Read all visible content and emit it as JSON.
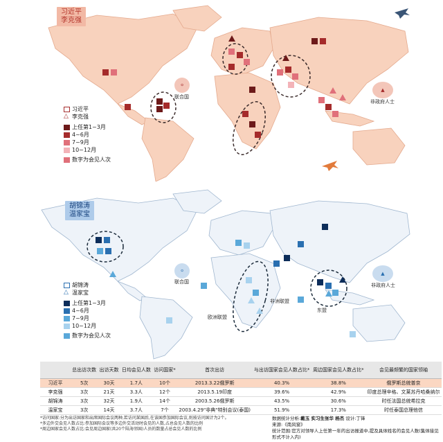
{
  "map1": {
    "tag_line1": "习近平",
    "tag_line2": "李克强",
    "un_label": "联合国",
    "nonstate_label": "非政府人士",
    "legend": {
      "leader1": "习近平",
      "leader2": "李克强",
      "q1": "上任第1~3月",
      "q2": "4~6月",
      "q3": "7~9月",
      "q4": "10~12月",
      "note": "数字为会见人次"
    }
  },
  "map2": {
    "tag_line1": "胡锦涛",
    "tag_line2": "温家宝",
    "un_label": "联合国",
    "nonstate_label": "非政府人士",
    "eu_label": "欧洲联盟",
    "africa_label": "非洲联盟",
    "asean_label": "东盟",
    "legend": {
      "leader1": "胡锦涛",
      "leader2": "温家宝",
      "q1": "上任第1~3月",
      "q2": "4~6月",
      "q3": "7~9月",
      "q4": "10~12月",
      "note": "数字为会见人次"
    }
  },
  "table": {
    "headers": [
      "",
      "总出访次数",
      "出访天数",
      "日均会见人数",
      "访问国家*",
      "首次出访",
      "与出访国家会见人数占比*",
      "周边国家会见人数占比*",
      "会见最频繁的国家领袖"
    ],
    "rows": [
      [
        "习近平",
        "5次",
        "30天",
        "1.7人",
        "10个",
        "2013.3.22俄罗斯",
        "40.3%",
        "38.8%",
        "俄罗斯总统普京"
      ],
      [
        "李克强",
        "3次",
        "21天",
        "3.3人",
        "12个",
        "2013.5.19印度",
        "39.6%",
        "42.9%",
        "印度总理辛格、文莱苏丹哈桑纳尔"
      ],
      [
        "胡锦涛",
        "3次",
        "32天",
        "1.9人",
        "14个",
        "2003.5.26俄罗斯",
        "43.5%",
        "30.6%",
        "时任法国总统希拉克"
      ],
      [
        "温家宝",
        "3次",
        "14天",
        "3.7人",
        "7个",
        "2003.4.29\"非典\"特别会议(泰国)",
        "51.9%",
        "17.3%",
        "时任泰国总理他信"
      ]
    ]
  },
  "notes": {
    "line1": "*访问国家:分为出访国家和出席国际会议两种,若访问某国后,在该国参加国际会议,则按访问国计为2个。",
    "line2": "*多边外交会见人数占比:参加国际会议等多边外交活动时会见的人数,占总会见人数的比例",
    "line3": "*周边国家会见人数占比:会见周边国家(共20个陆海邻国)人员的数量占总会见人数的比例"
  },
  "credit": {
    "line1_label": "数据统计分析:",
    "line1_names": "戴玉 实习生张华 杨杰",
    "line1_design": "设计:丁锋",
    "line2": "来源:《南风窗》",
    "line3": "统计范围:官方对领导人上任第一年的出访报道中,提及具体姓名的会见人数(集体接见形式不计入内)"
  },
  "colors": {
    "red_dark": "#6d1a1a",
    "red_mid": "#a52b2b",
    "red_light": "#e0707a",
    "red_pale": "#f3b3b8",
    "blue_dark": "#0d2d5a",
    "blue_mid": "#2a6fb0",
    "blue_light": "#5aa8d9",
    "blue_pale": "#a8d2ee",
    "land_red": "#f8d2bd",
    "land_blue": "#eef3f9"
  }
}
